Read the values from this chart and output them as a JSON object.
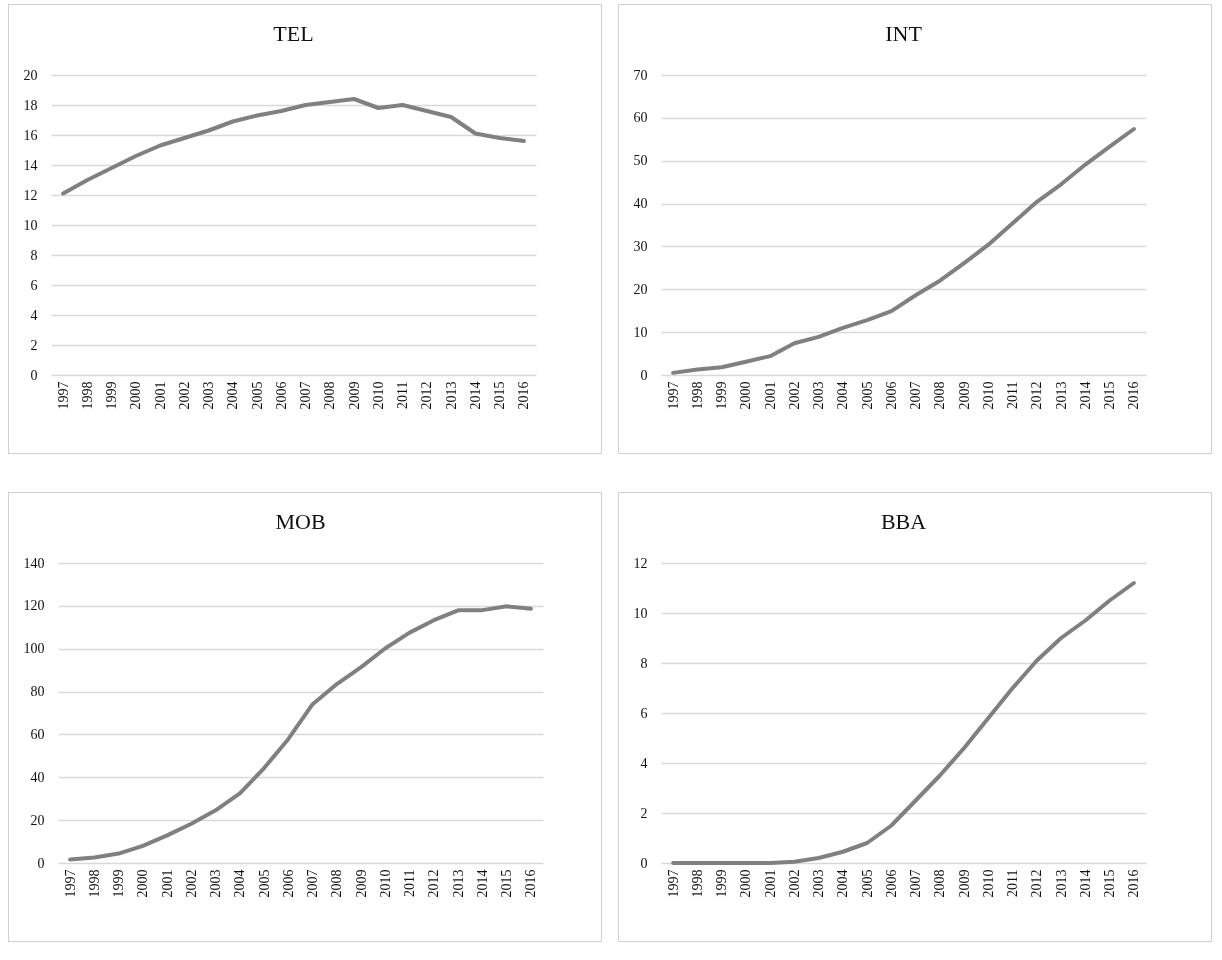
{
  "chart_data": [
    {
      "type": "line",
      "title": "TEL",
      "categories": [
        "1997",
        "1998",
        "1999",
        "2000",
        "2001",
        "2002",
        "2003",
        "2004",
        "2005",
        "2006",
        "2007",
        "2008",
        "2009",
        "2010",
        "2011",
        "2012",
        "2013",
        "2014",
        "2015",
        "2016"
      ],
      "series": [
        {
          "color": "#808080",
          "values": [
            12.1,
            13.0,
            13.8,
            14.6,
            15.3,
            15.8,
            16.3,
            16.9,
            17.3,
            17.6,
            18.0,
            18.2,
            18.4,
            17.8,
            18.0,
            17.6,
            17.2,
            16.1,
            15.8,
            15.6
          ]
        }
      ],
      "ylim": [
        0,
        20
      ],
      "yticks": [
        0,
        2,
        4,
        6,
        8,
        10,
        12,
        14,
        16,
        18,
        20
      ],
      "grid": "y"
    },
    {
      "type": "line",
      "title": "INT",
      "categories": [
        "1997",
        "1998",
        "1999",
        "2000",
        "2001",
        "2002",
        "2003",
        "2004",
        "2005",
        "2006",
        "2007",
        "2008",
        "2009",
        "2010",
        "2011",
        "2012",
        "2013",
        "2014",
        "2015",
        "2016"
      ],
      "series": [
        {
          "color": "#808080",
          "values": [
            0.5,
            1.3,
            1.8,
            3.1,
            4.4,
            7.4,
            8.9,
            11.0,
            12.8,
            14.9,
            18.6,
            22.0,
            26.1,
            30.4,
            35.4,
            40.4,
            44.5,
            49.1,
            53.3,
            57.4
          ]
        }
      ],
      "ylim": [
        0,
        70
      ],
      "yticks": [
        0,
        10,
        20,
        30,
        40,
        50,
        60,
        70
      ],
      "grid": "y"
    },
    {
      "type": "line",
      "title": "MOB",
      "categories": [
        "1997",
        "1998",
        "1999",
        "2000",
        "2001",
        "2002",
        "2003",
        "2004",
        "2005",
        "2006",
        "2007",
        "2008",
        "2009",
        "2010",
        "2011",
        "2012",
        "2013",
        "2014",
        "2015",
        "2016"
      ],
      "series": [
        {
          "color": "#808080",
          "values": [
            1.6,
            2.6,
            4.4,
            8.0,
            12.9,
            18.3,
            24.6,
            32.5,
            44.3,
            57.9,
            74.1,
            83.5,
            91.4,
            100.2,
            107.5,
            113.3,
            117.9,
            118.0,
            119.8,
            118.6
          ]
        }
      ],
      "ylim": [
        0,
        140
      ],
      "yticks": [
        0,
        20,
        40,
        60,
        80,
        100,
        120,
        140
      ],
      "grid": "y"
    },
    {
      "type": "line",
      "title": "BBA",
      "categories": [
        "1997",
        "1998",
        "1999",
        "2000",
        "2001",
        "2002",
        "2003",
        "2004",
        "2005",
        "2006",
        "2007",
        "2008",
        "2009",
        "2010",
        "2011",
        "2012",
        "2013",
        "2014",
        "2015",
        "2016"
      ],
      "series": [
        {
          "color": "#808080",
          "values": [
            0,
            0,
            0,
            0,
            0,
            0.05,
            0.2,
            0.45,
            0.8,
            1.5,
            2.5,
            3.5,
            4.6,
            5.8,
            7.0,
            8.1,
            9.0,
            9.7,
            10.5,
            11.2
          ]
        }
      ],
      "ylim": [
        0,
        12
      ],
      "yticks": [
        0,
        2,
        4,
        6,
        8,
        10,
        12
      ],
      "grid": "y"
    }
  ]
}
